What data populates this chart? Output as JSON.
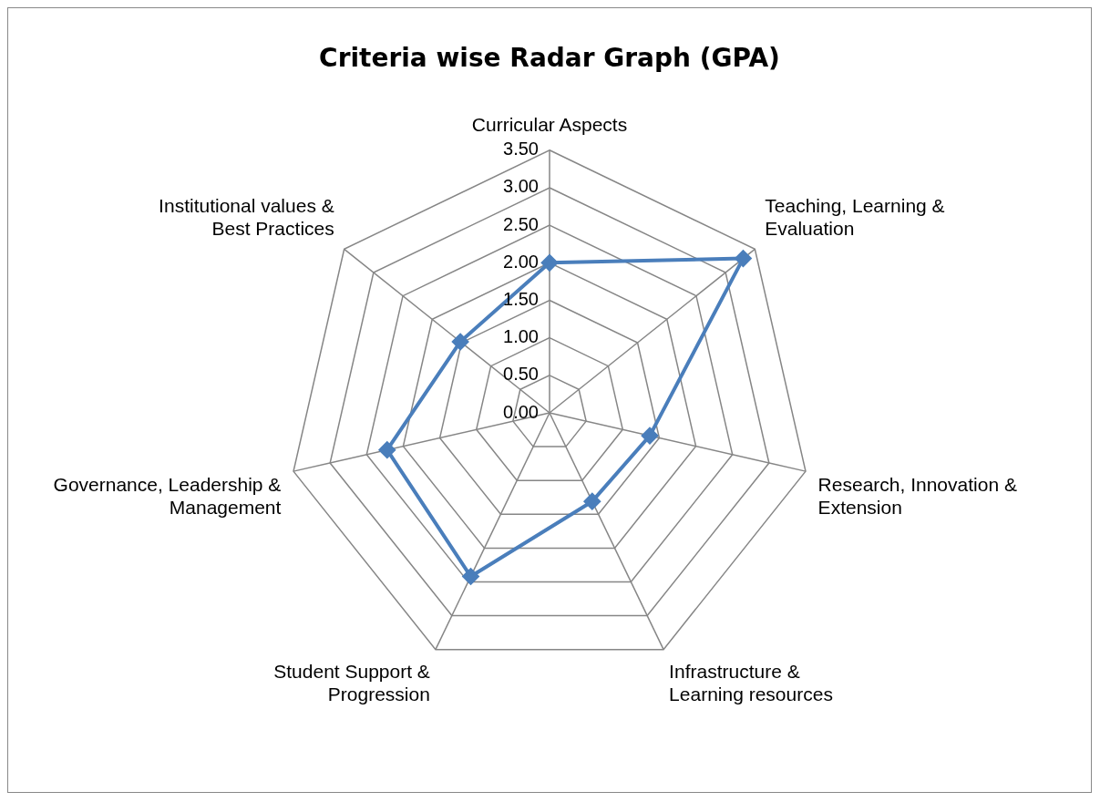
{
  "chart_data": {
    "type": "radar",
    "title": "Criteria wise Radar Graph (GPA)",
    "categories": [
      "Curricular Aspects",
      "Teaching, Learning & Evaluation",
      "Research, Innovation & Extension",
      "Infrastructure & Learning resources",
      "Student Support & Progression",
      "Governance, Leadership & Management",
      "Institutional values & Best Practices"
    ],
    "series": [
      {
        "color": "#4a7ebb",
        "values": [
          2.0,
          3.3,
          1.37,
          1.31,
          2.42,
          2.22,
          1.52
        ]
      }
    ],
    "ylim": [
      0,
      3.5
    ],
    "yticks": [
      {
        "value": 0,
        "label": "0.00"
      },
      {
        "value": 0.5,
        "label": "0.50"
      },
      {
        "value": 1,
        "label": "1.00"
      },
      {
        "value": 1.5,
        "label": "1.50"
      },
      {
        "value": 2,
        "label": "2.00"
      },
      {
        "value": 2.5,
        "label": "2.50"
      },
      {
        "value": 3,
        "label": "3.00"
      },
      {
        "value": 3.5,
        "label": "3.50"
      }
    ],
    "grid": true,
    "marker": "diamond"
  }
}
